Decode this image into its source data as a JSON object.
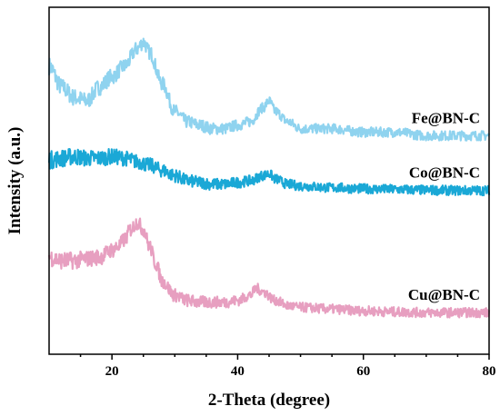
{
  "chart_data": {
    "type": "line",
    "xlabel": "2-Theta (degree)",
    "ylabel": "Intensity (a.u.)",
    "xlim": [
      10,
      80
    ],
    "xticks": [
      "20",
      "40",
      "60",
      "80"
    ],
    "xtick_values": [
      20,
      40,
      60,
      80
    ],
    "y_tick_labels_shown": false,
    "legend": "labels placed beside each curve",
    "grid": false,
    "series": [
      {
        "name": "Fe@BN-C",
        "color": "#8fd3ef",
        "x": [
          10,
          12,
          14,
          16,
          18,
          20,
          22,
          24,
          25,
          26,
          28,
          30,
          32,
          34,
          36,
          38,
          40,
          42,
          44,
          45,
          46,
          48,
          50,
          55,
          60,
          65,
          70,
          75,
          80
        ],
        "y_offset": [
          0.83,
          0.77,
          0.74,
          0.73,
          0.77,
          0.8,
          0.83,
          0.88,
          0.9,
          0.87,
          0.78,
          0.7,
          0.67,
          0.66,
          0.65,
          0.65,
          0.66,
          0.67,
          0.71,
          0.73,
          0.7,
          0.67,
          0.65,
          0.65,
          0.64,
          0.64,
          0.63,
          0.63,
          0.63
        ]
      },
      {
        "name": "Co@BN-C",
        "color": "#1aa8d6",
        "x": [
          10,
          12,
          14,
          16,
          18,
          20,
          22,
          24,
          26,
          28,
          30,
          32,
          34,
          36,
          38,
          40,
          42,
          44,
          45,
          46,
          48,
          50,
          55,
          60,
          65,
          70,
          75,
          80
        ],
        "y_offset": [
          0.56,
          0.565,
          0.57,
          0.565,
          0.565,
          0.57,
          0.565,
          0.555,
          0.545,
          0.53,
          0.515,
          0.5,
          0.495,
          0.49,
          0.49,
          0.495,
          0.5,
          0.515,
          0.52,
          0.505,
          0.49,
          0.485,
          0.48,
          0.477,
          0.475,
          0.473,
          0.472,
          0.472
        ]
      },
      {
        "name": "Cu@BN-C",
        "color": "#e79fc0",
        "x": [
          10,
          12,
          14,
          16,
          18,
          20,
          21,
          22,
          23,
          24,
          25,
          26,
          27,
          28,
          30,
          32,
          34,
          36,
          38,
          40,
          42,
          43,
          44,
          46,
          48,
          50,
          55,
          60,
          65,
          70,
          75,
          80
        ],
        "y_offset": [
          0.28,
          0.27,
          0.27,
          0.275,
          0.28,
          0.3,
          0.31,
          0.33,
          0.36,
          0.38,
          0.36,
          0.31,
          0.26,
          0.21,
          0.17,
          0.155,
          0.15,
          0.15,
          0.15,
          0.155,
          0.17,
          0.19,
          0.18,
          0.155,
          0.14,
          0.135,
          0.13,
          0.125,
          0.122,
          0.12,
          0.12,
          0.12
        ]
      }
    ]
  }
}
